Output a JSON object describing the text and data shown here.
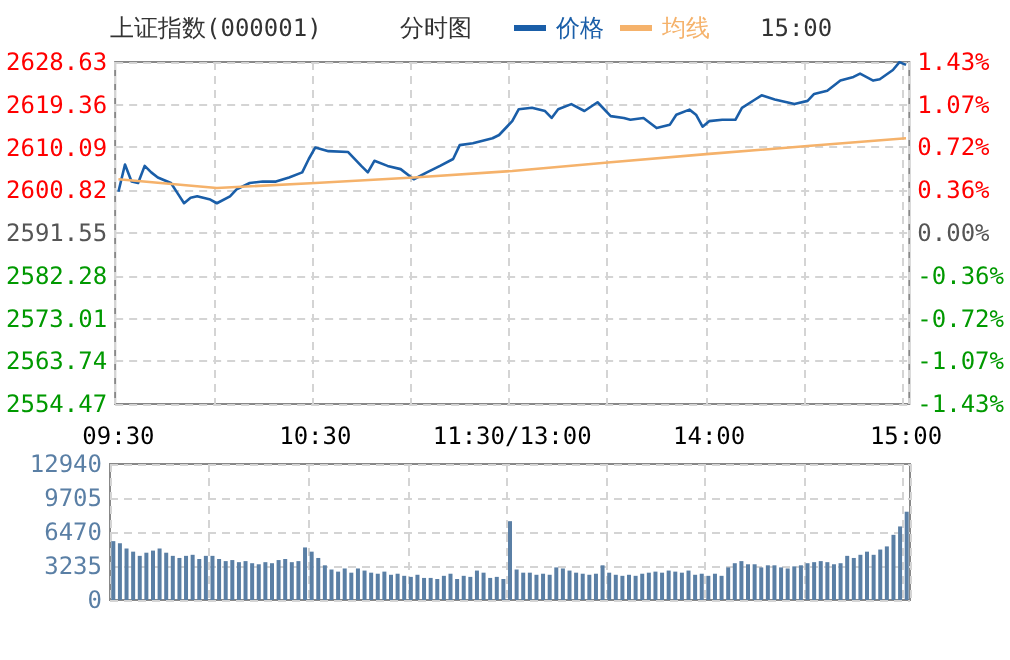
{
  "chart_data": [
    {
      "type": "line",
      "title": "上证指数(000001)",
      "subtitle": "分时图",
      "annotations": [
        "15:00"
      ],
      "legend": "top",
      "grid": true,
      "marker": "none",
      "categories": [
        "09:30",
        null,
        null,
        null,
        null,
        null,
        null,
        null,
        null,
        null,
        null,
        null,
        null,
        null,
        null,
        null,
        null,
        null,
        null,
        null,
        null,
        null,
        null,
        null,
        null,
        null,
        null,
        null,
        null,
        null,
        "10:30",
        null,
        null,
        null,
        null,
        null,
        null,
        null,
        null,
        null,
        null,
        null,
        null,
        null,
        null,
        null,
        null,
        null,
        null,
        null,
        null,
        null,
        null,
        null,
        null,
        null,
        null,
        null,
        null,
        null,
        "11:30/13:00",
        null,
        null,
        null,
        null,
        null,
        null,
        null,
        null,
        null,
        null,
        null,
        null,
        null,
        null,
        null,
        null,
        null,
        null,
        null,
        null,
        null,
        null,
        null,
        null,
        null,
        null,
        null,
        null,
        null,
        "14:00",
        null,
        null,
        null,
        null,
        null,
        null,
        null,
        null,
        null,
        null,
        null,
        null,
        null,
        null,
        null,
        null,
        null,
        null,
        null,
        null,
        null,
        null,
        null,
        null,
        null,
        null,
        null,
        null,
        null,
        "15:00"
      ],
      "ylim": [
        2554.47,
        2628.63
      ],
      "yticks": [
        2554.47,
        2563.74,
        2573.01,
        2582.28,
        2591.55,
        2600.82,
        2610.09,
        2619.36,
        2628.63
      ],
      "y2lim": [
        -1.43,
        1.43
      ],
      "y2ticks": [
        {
          "value": -1.43,
          "label": "-1.43%"
        },
        {
          "value": -1.07,
          "label": "-1.07%"
        },
        {
          "value": -0.72,
          "label": "-0.72%"
        },
        {
          "value": -0.36,
          "label": "-0.36%"
        },
        {
          "value": 0,
          "label": "0.00%"
        },
        {
          "value": 0.36,
          "label": "0.36%"
        },
        {
          "value": 0.72,
          "label": "0.72%"
        },
        {
          "value": 1.07,
          "label": "1.07%"
        },
        {
          "value": 1.43,
          "label": "1.43%"
        }
      ],
      "series": [
        {
          "name": "价格",
          "color": "#1a5ea8",
          "values": [
            2600.5,
            2606.4,
            2602.7,
            2602.4,
            2606.1,
            2604.7,
            2603.6,
            null,
            2602.4,
            2600.2,
            2598.0,
            2599.2,
            2599.5,
            null,
            2598.8,
            2598.0,
            null,
            2599.5,
            2601.0,
            null,
            2602.4,
            null,
            2602.7,
            null,
            2602.7,
            null,
            2603.6,
            null,
            2604.7,
            2607.6,
            2610.1,
            null,
            2609.3,
            null,
            null,
            2609.1,
            null,
            2606.1,
            2604.7,
            2607.2,
            null,
            2606.1,
            null,
            2605.4,
            null,
            2603.2,
            null,
            2604.7,
            null,
            2606.1,
            null,
            2607.6,
            2610.6,
            null,
            2611.0,
            null,
            null,
            2612.1,
            2612.8,
            null,
            2615.8,
            2618.4,
            null,
            2618.7,
            null,
            2618.0,
            2616.5,
            2618.4,
            null,
            2619.5,
            null,
            2618.0,
            null,
            2619.9,
            null,
            2616.9,
            null,
            2616.5,
            2616.1,
            null,
            2616.5,
            null,
            2614.3,
            null,
            2615.0,
            2617.2,
            null,
            2618.3,
            2617.2,
            2614.6,
            2615.8,
            null,
            2616.1,
            null,
            2616.1,
            2618.7,
            null,
            2620.5,
            2621.4,
            null,
            2620.5,
            null,
            null,
            2619.5,
            null,
            2620.2,
            2621.7,
            null,
            2622.4,
            null,
            2624.6,
            null,
            2625.4,
            2626.1,
            null,
            2624.6,
            2624.9,
            null,
            2626.9,
            2628.6,
            2628.0
          ]
        },
        {
          "name": "均线",
          "color": "#f5b26b",
          "values": [
            2603.2,
            null,
            null,
            null,
            null,
            null,
            null,
            null,
            null,
            null,
            null,
            null,
            null,
            null,
            null,
            2601.3,
            null,
            null,
            null,
            null,
            null,
            null,
            null,
            null,
            null,
            null,
            null,
            null,
            null,
            null,
            2602.4,
            null,
            null,
            null,
            null,
            null,
            null,
            null,
            null,
            null,
            null,
            null,
            null,
            null,
            null,
            2603.6,
            null,
            null,
            null,
            null,
            null,
            null,
            null,
            null,
            null,
            null,
            null,
            null,
            null,
            null,
            2605.0,
            null,
            null,
            null,
            null,
            null,
            null,
            null,
            null,
            null,
            null,
            null,
            null,
            null,
            null,
            2606.9,
            null,
            null,
            null,
            null,
            null,
            null,
            null,
            null,
            null,
            null,
            null,
            null,
            null,
            null,
            2608.7,
            null,
            null,
            null,
            null,
            null,
            null,
            null,
            null,
            null,
            null,
            null,
            null,
            null,
            null,
            2610.4,
            null,
            null,
            null,
            null,
            null,
            null,
            null,
            null,
            null,
            null,
            null,
            null,
            null,
            null,
            2612.1
          ]
        }
      ]
    },
    {
      "type": "bar",
      "grid": true,
      "tick_labels": "y",
      "color": "#5a7fa5",
      "categories": [
        null,
        null,
        null,
        null,
        null,
        null,
        null,
        null,
        null,
        null,
        null,
        null,
        null,
        null,
        null,
        null,
        null,
        null,
        null,
        null,
        null,
        null,
        null,
        null,
        null,
        null,
        null,
        null,
        null,
        null,
        null,
        null,
        null,
        null,
        null,
        null,
        null,
        null,
        null,
        null,
        null,
        null,
        null,
        null,
        null,
        null,
        null,
        null,
        null,
        null,
        null,
        null,
        null,
        null,
        null,
        null,
        null,
        null,
        null,
        null,
        null,
        null,
        null,
        null,
        null,
        null,
        null,
        null,
        null,
        null,
        null,
        null,
        null,
        null,
        null,
        null,
        null,
        null,
        null,
        null,
        null,
        null,
        null,
        null,
        null,
        null,
        null,
        null,
        null,
        null,
        null,
        null,
        null,
        null,
        null,
        null,
        null,
        null,
        null,
        null,
        null,
        null,
        null,
        null,
        null,
        null,
        null,
        null,
        null,
        null,
        null,
        null,
        null,
        null,
        null,
        null,
        null,
        null,
        null,
        null,
        null
      ],
      "ylim": [
        0,
        12940
      ],
      "yticks": [
        0,
        3235,
        6470,
        9705,
        12940
      ],
      "values": [
        5600,
        5400,
        4900,
        4600,
        4200,
        4500,
        4700,
        4900,
        4500,
        4200,
        4000,
        4200,
        4300,
        3900,
        4200,
        4200,
        3900,
        3700,
        3800,
        3600,
        3700,
        3500,
        3400,
        3600,
        3500,
        3800,
        3900,
        3600,
        3700,
        5000,
        4600,
        4000,
        3300,
        2900,
        2700,
        3000,
        2600,
        3000,
        2800,
        2600,
        2500,
        2700,
        2400,
        2500,
        2300,
        2200,
        2400,
        2100,
        2100,
        2000,
        2300,
        2500,
        2000,
        2300,
        2200,
        2800,
        2600,
        2100,
        2200,
        2000,
        7500,
        2900,
        2600,
        2600,
        2400,
        2500,
        2400,
        3100,
        3000,
        2800,
        2600,
        2500,
        2400,
        2500,
        3300,
        2600,
        2400,
        2300,
        2400,
        2300,
        2500,
        2600,
        2700,
        2600,
        2800,
        2700,
        2600,
        2800,
        2400,
        2500,
        2300,
        2500,
        2300,
        3100,
        3500,
        3700,
        3400,
        3400,
        3100,
        3300,
        3300,
        3100,
        3000,
        3200,
        3300,
        3500,
        3600,
        3700,
        3600,
        3400,
        3500,
        4200,
        4000,
        4300,
        4600,
        4300,
        4800,
        5100,
        6200,
        7000,
        8400
      ]
    }
  ]
}
